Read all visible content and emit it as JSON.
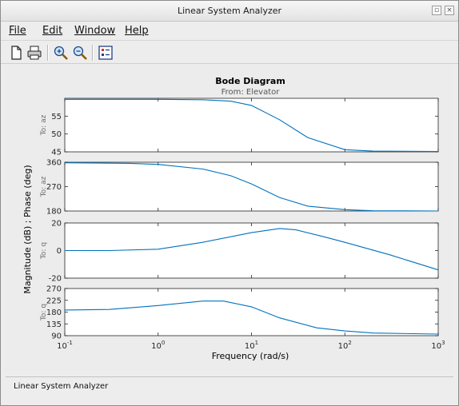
{
  "window": {
    "title": "Linear System Analyzer"
  },
  "menu": [
    {
      "key": "file",
      "label": "File"
    },
    {
      "key": "edit",
      "label": "Edit"
    },
    {
      "key": "window",
      "label": "Window"
    },
    {
      "key": "help",
      "label": "Help"
    }
  ],
  "toolbar": {
    "icons": [
      "new-document-icon",
      "print-icon",
      "zoom-in-icon",
      "zoom-out-icon",
      "plot-configuration-icon"
    ]
  },
  "status": {
    "text": "Linear System Analyzer"
  },
  "colors": {
    "line": "#0072bd",
    "axes_bg": "#ffffff",
    "grid": "#cfcfcf"
  },
  "chart_data": {
    "type": "line",
    "title": "Bode Diagram",
    "subtitle": "From: Elevator",
    "xlabel": "Frequency  (rad/s)",
    "ylabel": "Magnitude (dB) ; Phase (deg)",
    "xscale": "log",
    "xlim": [
      0.1,
      1000
    ],
    "xticks": [
      {
        "value": 0.1,
        "base": "10",
        "exp": "-1"
      },
      {
        "value": 1,
        "base": "10",
        "exp": "0"
      },
      {
        "value": 10,
        "base": "10",
        "exp": "1"
      },
      {
        "value": 100,
        "base": "10",
        "exp": "2"
      },
      {
        "value": 1000,
        "base": "10",
        "exp": "3"
      }
    ],
    "grid": false,
    "panels": [
      {
        "output": "To: az",
        "quantity": "Magnitude (dB)",
        "ylim": [
          45,
          60
        ],
        "yticks": [
          45,
          50,
          55
        ],
        "x": [
          0.1,
          1,
          3,
          6,
          10,
          20,
          40,
          100,
          200,
          1000
        ],
        "y": [
          59.7,
          59.7,
          59.6,
          59.2,
          58.0,
          54.0,
          49.0,
          45.6,
          45.2,
          45.1
        ]
      },
      {
        "output": "To: az",
        "quantity": "Phase (deg)",
        "ylim": [
          180,
          360
        ],
        "yticks": [
          180,
          270,
          360
        ],
        "x": [
          0.1,
          0.5,
          1,
          3,
          6,
          10,
          20,
          40,
          100,
          200,
          1000
        ],
        "y": [
          358,
          356,
          352,
          335,
          310,
          280,
          230,
          198,
          185,
          181,
          180
        ]
      },
      {
        "output": "To: q",
        "quantity": "Magnitude (dB)",
        "ylim": [
          -20,
          20
        ],
        "yticks": [
          -20,
          0,
          20
        ],
        "x": [
          0.1,
          0.3,
          1,
          3,
          10,
          20,
          30,
          60,
          100,
          300,
          1000
        ],
        "y": [
          0,
          0,
          1,
          6,
          13,
          16,
          15,
          10,
          6,
          -3,
          -14
        ]
      },
      {
        "output": "To: q",
        "quantity": "Phase (deg)",
        "ylim": [
          90,
          270
        ],
        "yticks": [
          90,
          135,
          180,
          225,
          270
        ],
        "x": [
          0.1,
          0.3,
          1,
          3,
          5,
          10,
          20,
          50,
          100,
          200,
          1000
        ],
        "y": [
          188,
          190,
          205,
          222,
          222,
          200,
          158,
          120,
          108,
          100,
          96
        ]
      }
    ]
  }
}
